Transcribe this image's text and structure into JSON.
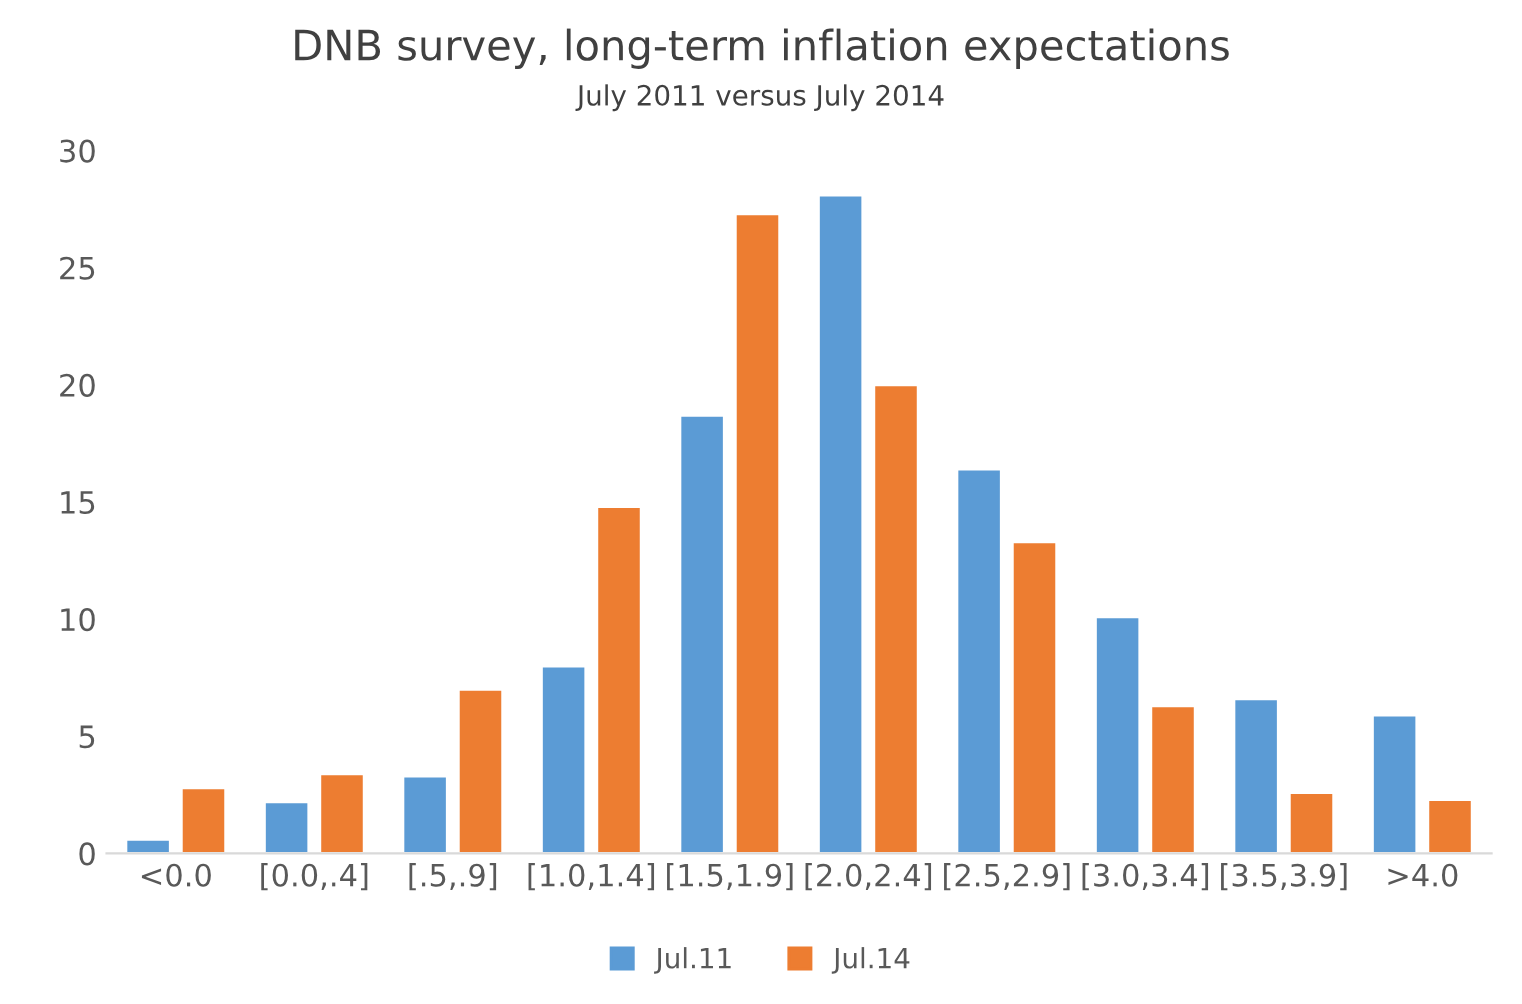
{
  "chart_data": {
    "type": "bar",
    "title": "DNB survey, long-term inflation expectations",
    "subtitle": "July 2011 versus July 2014",
    "categories": [
      "<0.0",
      "[0.0,.4]",
      "[.5,.9]",
      "[1.0,1.4]",
      "[1.5,1.9]",
      "[2.0,2.4]",
      "[2.5,2.9]",
      "[3.0,3.4]",
      "[3.5,3.9]",
      ">4.0"
    ],
    "series": [
      {
        "name": "Jul.11",
        "color": "#5b9bd5",
        "values": [
          0.6,
          2.2,
          3.3,
          8.0,
          18.7,
          28.1,
          16.4,
          10.1,
          6.6,
          5.9
        ]
      },
      {
        "name": "Jul.14",
        "color": "#ed7d31",
        "values": [
          2.8,
          3.4,
          7.0,
          14.8,
          27.3,
          20.0,
          13.3,
          6.3,
          2.6,
          2.3
        ]
      }
    ],
    "ylim": [
      0,
      30
    ],
    "yticks": [
      0,
      5,
      10,
      15,
      20,
      25,
      30
    ],
    "grid": false,
    "legend": "bottom"
  }
}
